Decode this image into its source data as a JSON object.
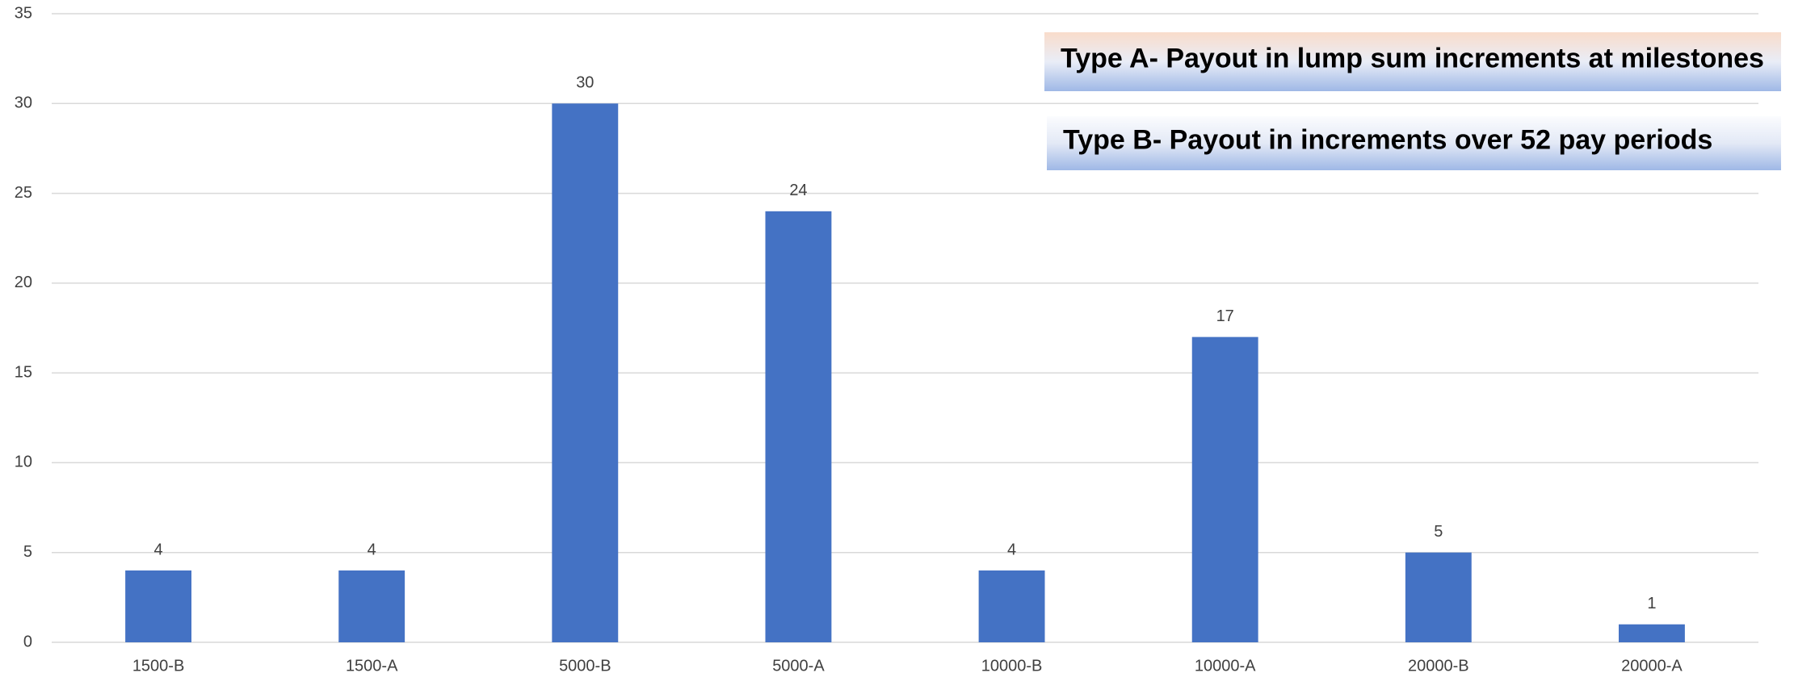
{
  "chart_data": {
    "type": "bar",
    "categories": [
      "1500-B",
      "1500-A",
      "5000-B",
      "5000-A",
      "10000-B",
      "10000-A",
      "20000-B",
      "20000-A"
    ],
    "values": [
      4,
      4,
      30,
      24,
      4,
      17,
      5,
      1
    ],
    "color": "#4472c4",
    "ylim": [
      0,
      35
    ],
    "yticks": [
      0,
      5,
      10,
      15,
      20,
      25,
      30,
      35
    ],
    "grid": true,
    "annotations": [
      "Type A- Payout in lump sum increments at milestones",
      "Type B- Payout in increments over 52 pay periods"
    ]
  }
}
